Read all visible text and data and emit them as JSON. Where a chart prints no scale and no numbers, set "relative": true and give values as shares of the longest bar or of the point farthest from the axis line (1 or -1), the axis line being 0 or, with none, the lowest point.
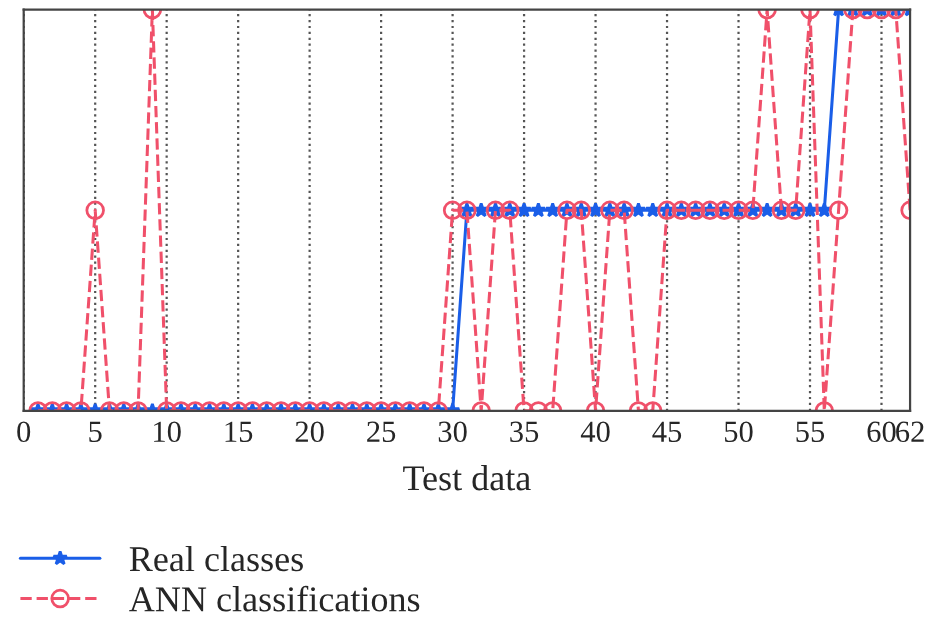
{
  "chart_data": {
    "type": "line",
    "xlabel": "Test data",
    "relative": true,
    "x": [
      1,
      2,
      3,
      4,
      5,
      6,
      7,
      8,
      9,
      10,
      11,
      12,
      13,
      14,
      15,
      16,
      17,
      18,
      19,
      20,
      21,
      22,
      23,
      24,
      25,
      26,
      27,
      28,
      29,
      30,
      31,
      32,
      33,
      34,
      35,
      36,
      37,
      38,
      39,
      40,
      41,
      42,
      43,
      44,
      45,
      46,
      47,
      48,
      49,
      50,
      51,
      52,
      53,
      54,
      55,
      56,
      57,
      58,
      59,
      60,
      61,
      62
    ],
    "xlim": [
      0,
      62
    ],
    "xticks": [
      0,
      5,
      10,
      15,
      20,
      25,
      30,
      35,
      40,
      45,
      50,
      55,
      60,
      62
    ],
    "series": [
      {
        "name": "Real classes",
        "color": "#1a5ee8",
        "marker": "star",
        "line_style": "solid",
        "values": [
          0,
          0,
          0,
          0,
          0,
          0,
          0,
          0,
          0,
          0,
          0,
          0,
          0,
          0,
          0,
          0,
          0,
          0,
          0,
          0,
          0,
          0,
          0,
          0,
          0,
          0,
          0,
          0,
          0,
          0,
          0.5,
          0.5,
          0.5,
          0.5,
          0.5,
          0.5,
          0.5,
          0.5,
          0.5,
          0.5,
          0.5,
          0.5,
          0.5,
          0.5,
          0.5,
          0.5,
          0.5,
          0.5,
          0.5,
          0.5,
          0.5,
          0.5,
          0.5,
          0.5,
          0.5,
          0.5,
          1,
          1,
          1,
          1,
          1,
          1
        ]
      },
      {
        "name": "ANN classifications",
        "color": "#f0506a",
        "marker": "circle",
        "line_style": "dashed",
        "values": [
          0,
          0,
          0,
          0,
          0.5,
          0,
          0,
          0,
          1,
          0,
          0,
          0,
          0,
          0,
          0,
          0,
          0,
          0,
          0,
          0,
          0,
          0,
          0,
          0,
          0,
          0,
          0,
          0,
          0,
          0.5,
          0.5,
          0,
          0.5,
          0.5,
          0,
          0,
          0,
          0.5,
          0.5,
          0,
          0.5,
          0.5,
          0,
          0,
          0.5,
          0.5,
          0.5,
          0.5,
          0.5,
          0.5,
          0.5,
          1,
          0.5,
          0.5,
          1,
          0,
          0.5,
          1,
          1,
          1,
          1,
          0.5
        ]
      }
    ],
    "grid": "x",
    "legend": "bottom"
  }
}
